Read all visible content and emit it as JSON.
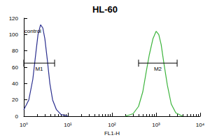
{
  "chart_data": {
    "type": "line",
    "title": "HL-60",
    "x_label": "FL1-H",
    "log": "x",
    "grid": false,
    "xlim": [
      1,
      10000
    ],
    "xticks": [
      {
        "value": 1,
        "label": "10⁰"
      },
      {
        "value": 10,
        "label": "10¹"
      },
      {
        "value": 100,
        "label": "10²"
      },
      {
        "value": 1000,
        "label": "10³"
      },
      {
        "value": 10000,
        "label": "10⁴"
      }
    ],
    "ylim": [
      0,
      120
    ],
    "yticks": [
      0,
      20,
      40,
      60,
      80,
      100,
      120
    ],
    "series": [
      {
        "color": "#2b2f8f",
        "x": [
          1,
          1.3,
          1.6,
          1.9,
          2.1,
          2.4,
          2.7,
          3.0,
          3.4,
          3.9,
          4.5,
          5.5,
          7,
          10
        ],
        "values": [
          8,
          20,
          45,
          80,
          100,
          112,
          108,
          95,
          70,
          40,
          20,
          8,
          2,
          0
        ]
      },
      {
        "color": "#3cb43c",
        "x": [
          200,
          300,
          400,
          500,
          600,
          700,
          850,
          1000,
          1150,
          1300,
          1500,
          1800,
          2200,
          2800,
          4000
        ],
        "values": [
          0,
          3,
          12,
          30,
          55,
          75,
          95,
          104,
          100,
          88,
          65,
          38,
          15,
          4,
          0
        ]
      }
    ],
    "annotations": [
      {
        "text": "control",
        "x": 1.6,
        "y": 104
      }
    ],
    "gates": [
      {
        "label": "M1",
        "x": [
          1,
          5
        ],
        "y": 65
      },
      {
        "label": "M2",
        "x": [
          400,
          3000
        ],
        "y": 65
      }
    ]
  }
}
